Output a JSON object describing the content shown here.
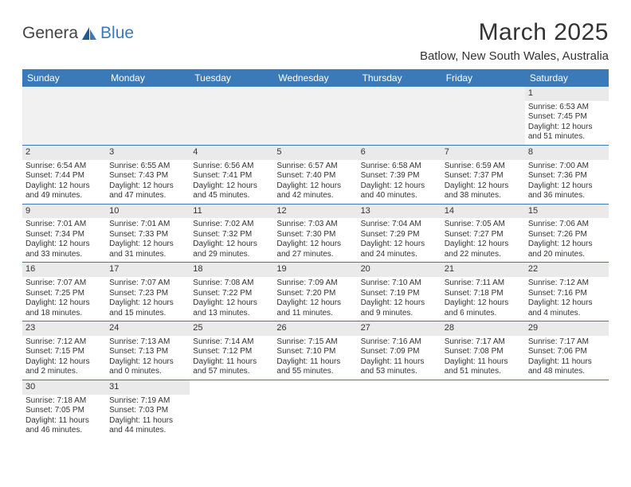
{
  "brand": {
    "part1": "Genera",
    "part2": "Blue"
  },
  "title": "March 2025",
  "location": "Batlow, New South Wales, Australia",
  "colors": {
    "header_bg": "#3b7ab8",
    "header_text": "#ffffff",
    "daynum_bg": "#eaeaea",
    "empty_bg": "#f1f1f1",
    "border": "#3b7ab8",
    "text": "#333333",
    "background": "#ffffff"
  },
  "weekdays": [
    "Sunday",
    "Monday",
    "Tuesday",
    "Wednesday",
    "Thursday",
    "Friday",
    "Saturday"
  ],
  "layout": {
    "columns": 7,
    "rows": 6,
    "label_fontsize": 12,
    "body_fontsize": 10,
    "title_fontsize": 30,
    "location_fontsize": 15
  },
  "weeks": [
    [
      null,
      null,
      null,
      null,
      null,
      null,
      {
        "n": "1",
        "sr": "Sunrise: 6:53 AM",
        "ss": "Sunset: 7:45 PM",
        "d1": "Daylight: 12 hours",
        "d2": "and 51 minutes."
      }
    ],
    [
      {
        "n": "2",
        "sr": "Sunrise: 6:54 AM",
        "ss": "Sunset: 7:44 PM",
        "d1": "Daylight: 12 hours",
        "d2": "and 49 minutes."
      },
      {
        "n": "3",
        "sr": "Sunrise: 6:55 AM",
        "ss": "Sunset: 7:43 PM",
        "d1": "Daylight: 12 hours",
        "d2": "and 47 minutes."
      },
      {
        "n": "4",
        "sr": "Sunrise: 6:56 AM",
        "ss": "Sunset: 7:41 PM",
        "d1": "Daylight: 12 hours",
        "d2": "and 45 minutes."
      },
      {
        "n": "5",
        "sr": "Sunrise: 6:57 AM",
        "ss": "Sunset: 7:40 PM",
        "d1": "Daylight: 12 hours",
        "d2": "and 42 minutes."
      },
      {
        "n": "6",
        "sr": "Sunrise: 6:58 AM",
        "ss": "Sunset: 7:39 PM",
        "d1": "Daylight: 12 hours",
        "d2": "and 40 minutes."
      },
      {
        "n": "7",
        "sr": "Sunrise: 6:59 AM",
        "ss": "Sunset: 7:37 PM",
        "d1": "Daylight: 12 hours",
        "d2": "and 38 minutes."
      },
      {
        "n": "8",
        "sr": "Sunrise: 7:00 AM",
        "ss": "Sunset: 7:36 PM",
        "d1": "Daylight: 12 hours",
        "d2": "and 36 minutes."
      }
    ],
    [
      {
        "n": "9",
        "sr": "Sunrise: 7:01 AM",
        "ss": "Sunset: 7:34 PM",
        "d1": "Daylight: 12 hours",
        "d2": "and 33 minutes."
      },
      {
        "n": "10",
        "sr": "Sunrise: 7:01 AM",
        "ss": "Sunset: 7:33 PM",
        "d1": "Daylight: 12 hours",
        "d2": "and 31 minutes."
      },
      {
        "n": "11",
        "sr": "Sunrise: 7:02 AM",
        "ss": "Sunset: 7:32 PM",
        "d1": "Daylight: 12 hours",
        "d2": "and 29 minutes."
      },
      {
        "n": "12",
        "sr": "Sunrise: 7:03 AM",
        "ss": "Sunset: 7:30 PM",
        "d1": "Daylight: 12 hours",
        "d2": "and 27 minutes."
      },
      {
        "n": "13",
        "sr": "Sunrise: 7:04 AM",
        "ss": "Sunset: 7:29 PM",
        "d1": "Daylight: 12 hours",
        "d2": "and 24 minutes."
      },
      {
        "n": "14",
        "sr": "Sunrise: 7:05 AM",
        "ss": "Sunset: 7:27 PM",
        "d1": "Daylight: 12 hours",
        "d2": "and 22 minutes."
      },
      {
        "n": "15",
        "sr": "Sunrise: 7:06 AM",
        "ss": "Sunset: 7:26 PM",
        "d1": "Daylight: 12 hours",
        "d2": "and 20 minutes."
      }
    ],
    [
      {
        "n": "16",
        "sr": "Sunrise: 7:07 AM",
        "ss": "Sunset: 7:25 PM",
        "d1": "Daylight: 12 hours",
        "d2": "and 18 minutes."
      },
      {
        "n": "17",
        "sr": "Sunrise: 7:07 AM",
        "ss": "Sunset: 7:23 PM",
        "d1": "Daylight: 12 hours",
        "d2": "and 15 minutes."
      },
      {
        "n": "18",
        "sr": "Sunrise: 7:08 AM",
        "ss": "Sunset: 7:22 PM",
        "d1": "Daylight: 12 hours",
        "d2": "and 13 minutes."
      },
      {
        "n": "19",
        "sr": "Sunrise: 7:09 AM",
        "ss": "Sunset: 7:20 PM",
        "d1": "Daylight: 12 hours",
        "d2": "and 11 minutes."
      },
      {
        "n": "20",
        "sr": "Sunrise: 7:10 AM",
        "ss": "Sunset: 7:19 PM",
        "d1": "Daylight: 12 hours",
        "d2": "and 9 minutes."
      },
      {
        "n": "21",
        "sr": "Sunrise: 7:11 AM",
        "ss": "Sunset: 7:18 PM",
        "d1": "Daylight: 12 hours",
        "d2": "and 6 minutes."
      },
      {
        "n": "22",
        "sr": "Sunrise: 7:12 AM",
        "ss": "Sunset: 7:16 PM",
        "d1": "Daylight: 12 hours",
        "d2": "and 4 minutes."
      }
    ],
    [
      {
        "n": "23",
        "sr": "Sunrise: 7:12 AM",
        "ss": "Sunset: 7:15 PM",
        "d1": "Daylight: 12 hours",
        "d2": "and 2 minutes."
      },
      {
        "n": "24",
        "sr": "Sunrise: 7:13 AM",
        "ss": "Sunset: 7:13 PM",
        "d1": "Daylight: 12 hours",
        "d2": "and 0 minutes."
      },
      {
        "n": "25",
        "sr": "Sunrise: 7:14 AM",
        "ss": "Sunset: 7:12 PM",
        "d1": "Daylight: 11 hours",
        "d2": "and 57 minutes."
      },
      {
        "n": "26",
        "sr": "Sunrise: 7:15 AM",
        "ss": "Sunset: 7:10 PM",
        "d1": "Daylight: 11 hours",
        "d2": "and 55 minutes."
      },
      {
        "n": "27",
        "sr": "Sunrise: 7:16 AM",
        "ss": "Sunset: 7:09 PM",
        "d1": "Daylight: 11 hours",
        "d2": "and 53 minutes."
      },
      {
        "n": "28",
        "sr": "Sunrise: 7:17 AM",
        "ss": "Sunset: 7:08 PM",
        "d1": "Daylight: 11 hours",
        "d2": "and 51 minutes."
      },
      {
        "n": "29",
        "sr": "Sunrise: 7:17 AM",
        "ss": "Sunset: 7:06 PM",
        "d1": "Daylight: 11 hours",
        "d2": "and 48 minutes."
      }
    ],
    [
      {
        "n": "30",
        "sr": "Sunrise: 7:18 AM",
        "ss": "Sunset: 7:05 PM",
        "d1": "Daylight: 11 hours",
        "d2": "and 46 minutes."
      },
      {
        "n": "31",
        "sr": "Sunrise: 7:19 AM",
        "ss": "Sunset: 7:03 PM",
        "d1": "Daylight: 11 hours",
        "d2": "and 44 minutes."
      },
      null,
      null,
      null,
      null,
      null
    ]
  ]
}
